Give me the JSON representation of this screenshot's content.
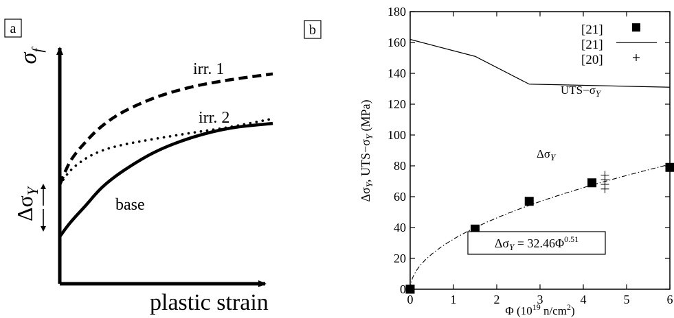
{
  "chart_data": [
    {
      "type": "line",
      "panel_label": "a",
      "xlabel": "plastic strain",
      "ylabel": "σ_f",
      "axes_numbered": false,
      "annotations": [
        "ΔσY"
      ],
      "series": [
        {
          "name": "irr. 1",
          "style": "dashed",
          "x": [
            0,
            0.05,
            0.12,
            0.2,
            0.3,
            0.45,
            0.62,
            0.8,
            1.0
          ],
          "y": [
            0.42,
            0.52,
            0.6,
            0.67,
            0.73,
            0.79,
            0.835,
            0.865,
            0.89
          ]
        },
        {
          "name": "irr. 2",
          "style": "dotted",
          "x": [
            0,
            0.05,
            0.12,
            0.2,
            0.3,
            0.45,
            0.62,
            0.8,
            1.0
          ],
          "y": [
            0.42,
            0.48,
            0.53,
            0.565,
            0.59,
            0.615,
            0.64,
            0.665,
            0.7
          ]
        },
        {
          "name": "base",
          "style": "solid",
          "x": [
            0,
            0.05,
            0.12,
            0.2,
            0.3,
            0.45,
            0.62,
            0.8,
            1.0
          ],
          "y": [
            0.2,
            0.26,
            0.33,
            0.41,
            0.48,
            0.56,
            0.62,
            0.66,
            0.68
          ]
        }
      ]
    },
    {
      "type": "line",
      "panel_label": "b",
      "xlabel": "Φ (10¹⁹ n/cm²)",
      "ylabel": "ΔσY, UTS−σY (MPa)",
      "xlim": [
        0,
        6
      ],
      "ylim": [
        0,
        180
      ],
      "xticks": [
        0,
        1,
        2,
        3,
        4,
        5,
        6
      ],
      "yticks": [
        0,
        20,
        40,
        60,
        80,
        100,
        120,
        140,
        160,
        180
      ],
      "legend_position": "top-right",
      "legend": [
        {
          "label": "[21]",
          "marker": "square"
        },
        {
          "label": "[21]",
          "marker": "line"
        },
        {
          "label": "[20]",
          "marker": "plus"
        }
      ],
      "series": [
        {
          "marker": "square",
          "x": [
            0,
            1.5,
            2.75,
            4.2,
            6.0
          ],
          "y": [
            0,
            39,
            57,
            69,
            79
          ]
        },
        {
          "label": "UTS−σY",
          "style": "solid",
          "x": [
            0,
            1.5,
            2.75,
            6.0
          ],
          "y": [
            162,
            151,
            133,
            131
          ]
        },
        {
          "marker": "plus",
          "x": [
            4.5,
            4.5,
            4.5,
            4.5
          ],
          "y": [
            65,
            68,
            71,
            74
          ]
        },
        {
          "label": "ΔσY",
          "style": "dashdot",
          "fit": "ΔσY = 32.46Φ^0.51",
          "coefficient": 32.46,
          "exponent": 0.51
        }
      ],
      "annotations": [
        "ΔσY = 32.46Φ^0.51"
      ]
    }
  ]
}
